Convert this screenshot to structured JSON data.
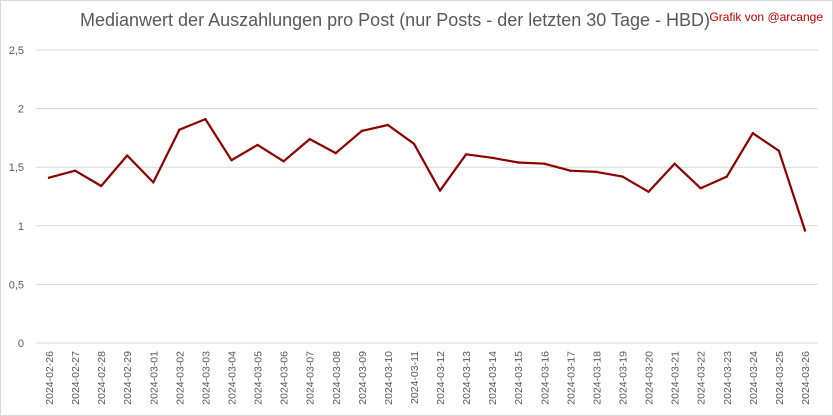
{
  "chart_data": {
    "type": "line",
    "title": "Medianwert der Auszahlungen pro Post (nur Posts - der letzten 30 Tage - HBD)",
    "credit": "Grafik von @arcange",
    "xlabel": "",
    "ylabel": "",
    "ylim": [
      0,
      2.5
    ],
    "yticks": [
      "0",
      "0,5",
      "1",
      "1,5",
      "2",
      "2,5"
    ],
    "grid": true,
    "legend": "none",
    "line_color": "#8b0000",
    "categories": [
      "2024-02-26",
      "2024-02-27",
      "2024-02-28",
      "2024-02-29",
      "2024-03-01",
      "2024-03-02",
      "2024-03-03",
      "2024-03-04",
      "2024-03-05",
      "2024-03-06",
      "2024-03-07",
      "2024-03-08",
      "2024-03-09",
      "2024-03-10",
      "2024-03-11",
      "2024-03-12",
      "2024-03-13",
      "2024-03-14",
      "2024-03-15",
      "2024-03-16",
      "2024-03-17",
      "2024-03-18",
      "2024-03-19",
      "2024-03-20",
      "2024-03-21",
      "2024-03-22",
      "2024-03-23",
      "2024-03-24",
      "2024-03-25",
      "2024-03-26"
    ],
    "values": [
      1.41,
      1.47,
      1.34,
      1.6,
      1.37,
      1.82,
      1.91,
      1.56,
      1.69,
      1.55,
      1.74,
      1.62,
      1.81,
      1.86,
      1.7,
      1.3,
      1.61,
      1.58,
      1.54,
      1.53,
      1.47,
      1.46,
      1.42,
      1.29,
      1.53,
      1.32,
      1.42,
      1.79,
      1.64,
      0.96
    ]
  }
}
